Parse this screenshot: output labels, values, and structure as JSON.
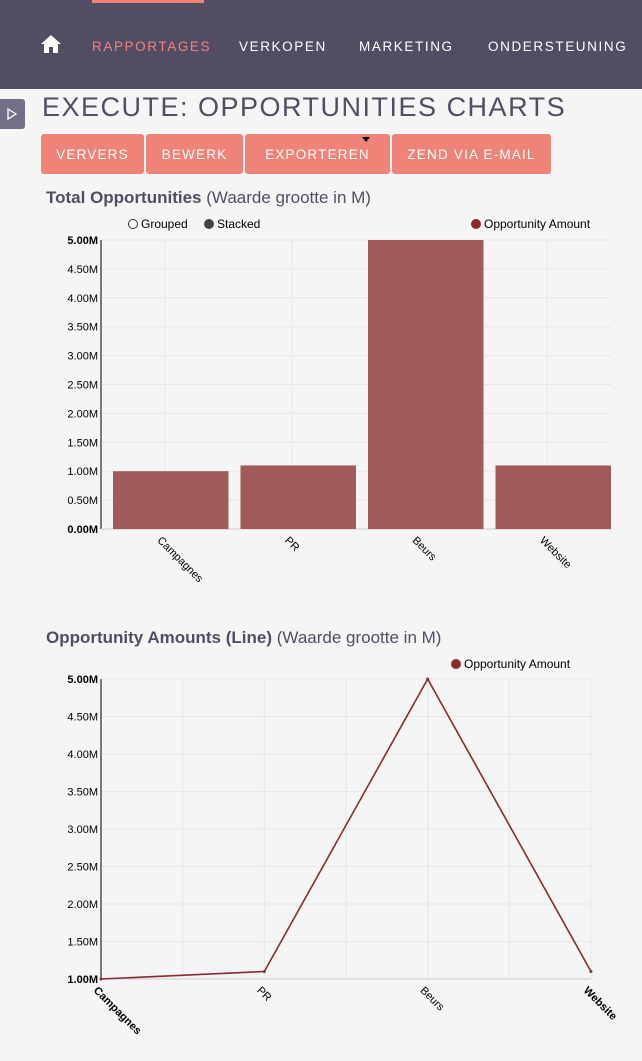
{
  "nav": {
    "items": [
      {
        "label": "RAPPORTAGES",
        "active": true
      },
      {
        "label": "VERKOPEN",
        "active": false
      },
      {
        "label": "MARKETING",
        "active": false
      },
      {
        "label": "ONDERSTEUNING",
        "active": false
      }
    ]
  },
  "page": {
    "title": "EXECUTE: OPPORTUNITIES CHARTS"
  },
  "actions": {
    "refresh": "VERVERS",
    "edit": "BEWERK",
    "export": "EXPORTEREN",
    "email": "ZEND VIA E-MAIL"
  },
  "colors": {
    "nav_bg": "#534d64",
    "accent": "#f08377",
    "series": "#8b2a2a",
    "bar": "#a05a5a"
  },
  "chart_data": [
    {
      "type": "bar",
      "title": "Total Opportunities",
      "subtitle": "(Waarde grootte in M)",
      "legend_options": [
        "Grouped",
        "Stacked"
      ],
      "series": [
        {
          "name": "Opportunity Amount",
          "values": [
            1.0,
            1.1,
            5.0,
            1.1
          ]
        }
      ],
      "categories": [
        "Campagnes",
        "PR",
        "Beurs",
        "Website"
      ],
      "ylim": [
        0,
        5
      ],
      "yticks": [
        "0.00M",
        "0.50M",
        "1.00M",
        "1.50M",
        "2.00M",
        "2.50M",
        "3.00M",
        "3.50M",
        "4.00M",
        "4.50M",
        "5.00M"
      ],
      "legend": "top-right",
      "grid": true
    },
    {
      "type": "line",
      "title": "Opportunity Amounts (Line)",
      "subtitle": "(Waarde grootte in M)",
      "series": [
        {
          "name": "Opportunity Amount",
          "values": [
            1.0,
            1.1,
            5.0,
            1.1
          ]
        }
      ],
      "categories": [
        "Campagnes",
        "PR",
        "Beurs",
        "Website"
      ],
      "ylim": [
        1,
        5
      ],
      "yticks": [
        "1.00M",
        "1.50M",
        "2.00M",
        "2.50M",
        "3.00M",
        "3.50M",
        "4.00M",
        "4.50M",
        "5.00M"
      ],
      "legend": "top-right",
      "grid": true
    }
  ]
}
